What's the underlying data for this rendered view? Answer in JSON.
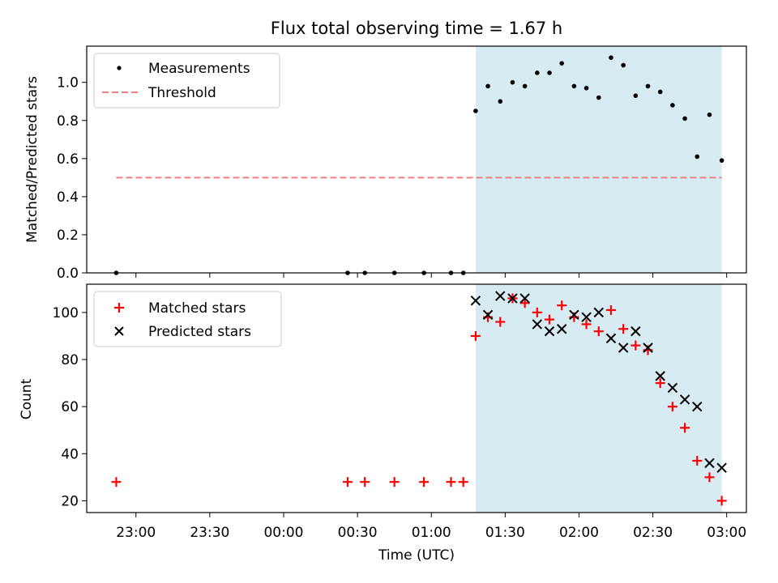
{
  "figure": {
    "title": "Flux total observing time = 1.67 h",
    "xlabel": "Time (UTC)",
    "x_tick_labels": [
      "23:00",
      "23:30",
      "00:00",
      "00:30",
      "01:00",
      "01:30",
      "02:00",
      "02:30",
      "03:00"
    ],
    "x_ticks": [
      "22:55",
      "23:25",
      "23:55",
      "00:25",
      "00:55",
      "01:25",
      "01:55",
      "02:25",
      "02:55"
    ],
    "x_range": [
      "22:35",
      "03:03"
    ],
    "shaded_region": {
      "start": "01:13",
      "end": "02:53",
      "color": "#add8e6"
    }
  },
  "chart_data": [
    {
      "type": "scatter",
      "ylabel": "Matched/Predicted stars",
      "ylim": [
        0,
        1.19
      ],
      "y_ticks": [
        0.0,
        0.2,
        0.4,
        0.6,
        0.8,
        1.0
      ],
      "y_tick_labels": [
        "0.0",
        "0.2",
        "0.4",
        "0.6",
        "0.8",
        "1.0"
      ],
      "legend_position": "top-left",
      "series": [
        {
          "name": "Measurements",
          "marker": "dot",
          "color": "#000000",
          "x": [
            "22:47",
            "00:21",
            "00:28",
            "00:40",
            "00:52",
            "01:03",
            "01:08",
            "01:13",
            "01:18",
            "01:23",
            "01:28",
            "01:33",
            "01:38",
            "01:43",
            "01:48",
            "01:53",
            "01:58",
            "02:03",
            "02:08",
            "02:13",
            "02:18",
            "02:23",
            "02:28",
            "02:33",
            "02:38",
            "02:43",
            "02:48",
            "02:53"
          ],
          "y": [
            0.0,
            0.0,
            0.0,
            0.0,
            0.0,
            0.0,
            0.0,
            0.85,
            0.98,
            0.9,
            1.0,
            0.98,
            1.05,
            1.05,
            1.1,
            0.98,
            0.97,
            0.92,
            1.13,
            1.09,
            0.93,
            0.98,
            0.95,
            0.88,
            0.81,
            0.61,
            0.83,
            0.59
          ]
        },
        {
          "name": "Threshold",
          "style": "dashed",
          "color": "#f08080",
          "x": [
            "22:47",
            "02:53"
          ],
          "y": [
            0.5,
            0.5
          ]
        }
      ]
    },
    {
      "type": "scatter",
      "ylabel": "Count",
      "ylim": [
        15,
        112
      ],
      "y_ticks": [
        20,
        40,
        60,
        80,
        100
      ],
      "y_tick_labels": [
        "20",
        "40",
        "60",
        "80",
        "100"
      ],
      "legend_position": "top-left",
      "series": [
        {
          "name": "Matched stars",
          "marker": "plus",
          "color": "#ff0000",
          "x": [
            "22:47",
            "00:21",
            "00:28",
            "00:40",
            "00:52",
            "01:03",
            "01:08",
            "01:13",
            "01:18",
            "01:23",
            "01:28",
            "01:33",
            "01:38",
            "01:43",
            "01:48",
            "01:53",
            "01:58",
            "02:03",
            "02:08",
            "02:13",
            "02:18",
            "02:23",
            "02:28",
            "02:33",
            "02:38",
            "02:43",
            "02:48",
            "02:53"
          ],
          "y": [
            28,
            28,
            28,
            28,
            28,
            28,
            28,
            90,
            98,
            96,
            106,
            104,
            100,
            97,
            103,
            98,
            95,
            92,
            101,
            93,
            86,
            84,
            70,
            60,
            51,
            37,
            30,
            20
          ]
        },
        {
          "name": "Predicted stars",
          "marker": "x",
          "color": "#000000",
          "x": [
            "01:13",
            "01:18",
            "01:23",
            "01:28",
            "01:33",
            "01:38",
            "01:43",
            "01:48",
            "01:53",
            "01:58",
            "02:03",
            "02:08",
            "02:13",
            "02:18",
            "02:23",
            "02:28",
            "02:33",
            "02:38",
            "02:43",
            "02:48",
            "02:53"
          ],
          "y": [
            105,
            99,
            107,
            106,
            106,
            95,
            92,
            93,
            99,
            98,
            100,
            89,
            85,
            92,
            85,
            73,
            68,
            63,
            60,
            36,
            34
          ]
        }
      ]
    }
  ]
}
